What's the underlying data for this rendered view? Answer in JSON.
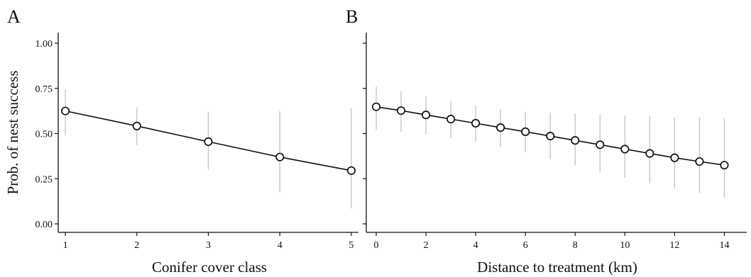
{
  "chart_data": [
    {
      "type": "line",
      "panel_label": "A",
      "xlabel": "Conifer cover class",
      "ylabel": "Prob. of nest success",
      "x": [
        1,
        2,
        3,
        4,
        5
      ],
      "y": [
        0.625,
        0.542,
        0.455,
        0.37,
        0.295
      ],
      "ci_low": [
        0.49,
        0.435,
        0.3,
        0.175,
        0.085
      ],
      "ci_high": [
        0.745,
        0.645,
        0.62,
        0.625,
        0.64
      ],
      "xlim": [
        0.9,
        5.1
      ],
      "ylim": [
        0,
        1
      ],
      "xticks": [
        1,
        2,
        3,
        4,
        5
      ],
      "yticks": [
        0,
        0.25,
        0.5,
        0.75,
        1
      ],
      "ytick_labels": [
        "0.00",
        "0.25",
        "0.50",
        "0.75",
        "1.00"
      ],
      "grid": false,
      "marker": "open-circle",
      "colors": {
        "line": "#111111",
        "ci": "#c8c8c8",
        "marker_fill": "#ffffff"
      }
    },
    {
      "type": "line",
      "panel_label": "B",
      "xlabel": "Distance to treatment (km)",
      "ylabel": "",
      "x": [
        0,
        1,
        2,
        3,
        4,
        5,
        6,
        7,
        8,
        9,
        10,
        11,
        12,
        13,
        14
      ],
      "y": [
        0.648,
        0.627,
        0.603,
        0.58,
        0.557,
        0.533,
        0.51,
        0.486,
        0.462,
        0.438,
        0.414,
        0.39,
        0.366,
        0.345,
        0.325
      ],
      "ci_low": [
        0.52,
        0.51,
        0.495,
        0.475,
        0.455,
        0.425,
        0.395,
        0.36,
        0.325,
        0.29,
        0.255,
        0.225,
        0.195,
        0.17,
        0.145
      ],
      "ci_high": [
        0.76,
        0.735,
        0.705,
        0.68,
        0.655,
        0.635,
        0.62,
        0.615,
        0.61,
        0.605,
        0.6,
        0.595,
        0.59,
        0.59,
        0.585
      ],
      "xlim": [
        -0.4,
        14.9
      ],
      "ylim": [
        0,
        1
      ],
      "xticks": [
        0,
        2,
        4,
        6,
        8,
        10,
        12,
        14
      ],
      "yticks": [
        0,
        0.25,
        0.5,
        0.75,
        1
      ],
      "grid": false,
      "marker": "open-circle",
      "colors": {
        "line": "#111111",
        "ci": "#c8c8c8",
        "marker_fill": "#ffffff"
      }
    }
  ]
}
